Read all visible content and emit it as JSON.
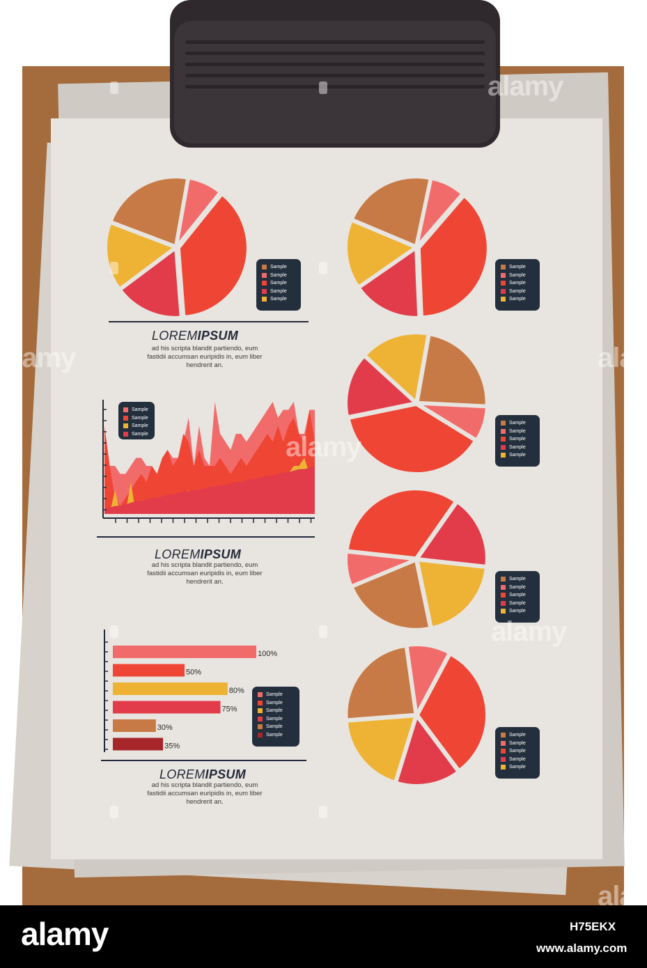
{
  "colors": {
    "board": "#a46b3d",
    "paper": "#e8e4df",
    "clip": "#2f292d",
    "legend_bg": "#232f3d",
    "salmon": "#f26b6b",
    "red": "#ef4535",
    "crimson": "#e23c4a",
    "orange": "#c77a45",
    "yellow": "#eeb334",
    "dark_red": "#a6262a"
  },
  "blocks": [
    {
      "title_light": "LOREM",
      "title_bold": "IPSUM",
      "desc": [
        "ad his scripta blandit partiendo, eum",
        "fastidii accumsan euripidis in, eum liber",
        "hendrerit an."
      ]
    },
    {
      "title_light": "LOREM",
      "title_bold": "IPSUM",
      "desc": [
        "ad his scripta blandit partiendo, eum",
        "fastidii accumsan euripidis in, eum liber",
        "hendrerit an."
      ]
    },
    {
      "title_light": "LOREM",
      "title_bold": "IPSUM",
      "desc": [
        "ad his scripta blandit partiendo, eum",
        "fastidii accumsan euripidis in, eum liber",
        "hendrerit an."
      ]
    }
  ],
  "legends": {
    "pie_legend": [
      {
        "label": "Sample",
        "color": "#c77a45"
      },
      {
        "label": "Sample",
        "color": "#f26b6b"
      },
      {
        "label": "Sample",
        "color": "#ef4535"
      },
      {
        "label": "Sample",
        "color": "#e23c4a"
      },
      {
        "label": "Sample",
        "color": "#eeb334"
      }
    ],
    "area_legend": [
      {
        "label": "Sample",
        "color": "#f26b6b"
      },
      {
        "label": "Sample",
        "color": "#ef4535"
      },
      {
        "label": "Sample",
        "color": "#eeb334"
      },
      {
        "label": "Sample",
        "color": "#e23c4a"
      }
    ],
    "bar_legend": [
      {
        "label": "Sample",
        "color": "#f26b6b"
      },
      {
        "label": "Sample",
        "color": "#ef4535"
      },
      {
        "label": "Sample",
        "color": "#eeb334"
      },
      {
        "label": "Sample",
        "color": "#e23c4a"
      },
      {
        "label": "Sample",
        "color": "#c77a45"
      },
      {
        "label": "Sample",
        "color": "#a6262a"
      }
    ]
  },
  "chart_data": [
    {
      "type": "pie",
      "slices": [
        {
          "color": "#f26b6b",
          "value": 8
        },
        {
          "color": "#ef4535",
          "value": 38
        },
        {
          "color": "#e23c4a",
          "value": 16
        },
        {
          "color": "#eeb334",
          "value": 16
        },
        {
          "color": "#c77a45",
          "value": 22
        }
      ]
    },
    {
      "type": "pie",
      "slices": [
        {
          "color": "#f26b6b",
          "value": 8
        },
        {
          "color": "#ef4535",
          "value": 38
        },
        {
          "color": "#e23c4a",
          "value": 16
        },
        {
          "color": "#eeb334",
          "value": 16
        },
        {
          "color": "#c77a45",
          "value": 22
        }
      ]
    },
    {
      "type": "pie",
      "slices": [
        {
          "color": "#c77a45",
          "value": 23
        },
        {
          "color": "#f26b6b",
          "value": 8
        },
        {
          "color": "#ef4535",
          "value": 38
        },
        {
          "color": "#e23c4a",
          "value": 15
        },
        {
          "color": "#eeb334",
          "value": 16
        }
      ]
    },
    {
      "type": "pie",
      "slices": [
        {
          "color": "#e23c4a",
          "value": 17
        },
        {
          "color": "#eeb334",
          "value": 20
        },
        {
          "color": "#c77a45",
          "value": 22
        },
        {
          "color": "#f26b6b",
          "value": 8
        },
        {
          "color": "#ef4535",
          "value": 33
        }
      ]
    },
    {
      "type": "pie",
      "slices": [
        {
          "color": "#ef4535",
          "value": 32
        },
        {
          "color": "#e23c4a",
          "value": 15
        },
        {
          "color": "#eeb334",
          "value": 19
        },
        {
          "color": "#c77a45",
          "value": 24
        },
        {
          "color": "#f26b6b",
          "value": 10
        }
      ]
    },
    {
      "type": "area",
      "x": [
        0,
        1,
        2,
        3,
        4,
        5,
        6,
        7,
        8,
        9,
        10,
        11,
        12,
        13,
        14,
        15,
        16,
        17,
        18,
        19,
        20,
        21,
        22,
        23,
        24,
        25,
        26,
        27,
        28,
        29,
        30,
        31,
        32,
        33,
        34,
        35,
        36,
        37,
        38,
        39,
        40
      ],
      "series": [
        {
          "color": "#f26b6b",
          "values": [
            3,
            3,
            3,
            2.5,
            2.5,
            3,
            3.5,
            3.5,
            3,
            3,
            2.5,
            3.5,
            4,
            3.5,
            3.5,
            4.5,
            6,
            3,
            5.5,
            3.5,
            3,
            7,
            5,
            4.5,
            4,
            5,
            5,
            4.5,
            5,
            5.5,
            6,
            6.5,
            7,
            6,
            6.5,
            6.5,
            7,
            5,
            5,
            6.5,
            6.5
          ]
        },
        {
          "color": "#ef4535",
          "values": [
            5.5,
            3,
            1,
            0.5,
            1,
            1.5,
            2,
            2.5,
            2,
            3,
            2.5,
            3.5,
            4,
            3,
            3.5,
            5,
            4.5,
            3,
            4,
            3,
            3,
            3,
            3.5,
            3,
            2.5,
            3,
            3.5,
            3,
            3.5,
            4,
            4.5,
            5,
            4.5,
            5.5,
            4.5,
            5.5,
            6,
            5,
            4.5,
            6.5,
            4.5
          ]
        },
        {
          "color": "#eeb334",
          "values": [
            0,
            0,
            1.5,
            0,
            0,
            2,
            0,
            0,
            0,
            1,
            0,
            0,
            1,
            0,
            0,
            0,
            1.5,
            0,
            0,
            0,
            0,
            0,
            0,
            0,
            1,
            0,
            1,
            0,
            1.5,
            1,
            1,
            1.5,
            1.5,
            2,
            2.5,
            2.5,
            3,
            3,
            3.5,
            2.5,
            1.5
          ]
        },
        {
          "color": "#e23c4a",
          "values": [
            0.3,
            0.4,
            0.5,
            0.5,
            0.6,
            0.7,
            0.8,
            0.8,
            0.9,
            1,
            1,
            1.1,
            1.2,
            1.2,
            1.3,
            1.4,
            1.4,
            1.5,
            1.5,
            1.6,
            1.7,
            1.7,
            1.8,
            1.8,
            1.9,
            2,
            2,
            2.1,
            2.2,
            2.2,
            2.3,
            2.4,
            2.4,
            2.5,
            2.6,
            2.6,
            2.7,
            2.8,
            2.8,
            2.9,
            3
          ]
        }
      ]
    },
    {
      "type": "bar",
      "orientation": "horizontal",
      "labels": [
        "100%",
        "50%",
        "80%",
        "75%",
        "30%",
        "35%"
      ],
      "values": [
        100,
        50,
        80,
        75,
        30,
        35
      ],
      "colors": [
        "#f26b6b",
        "#ef4535",
        "#eeb334",
        "#e23c4a",
        "#c77a45",
        "#a6262a"
      ]
    }
  ],
  "watermark": {
    "text": "alamy"
  },
  "footer": {
    "logo": "alamy",
    "image_id": "H75EKX",
    "url": "www.alamy.com"
  }
}
